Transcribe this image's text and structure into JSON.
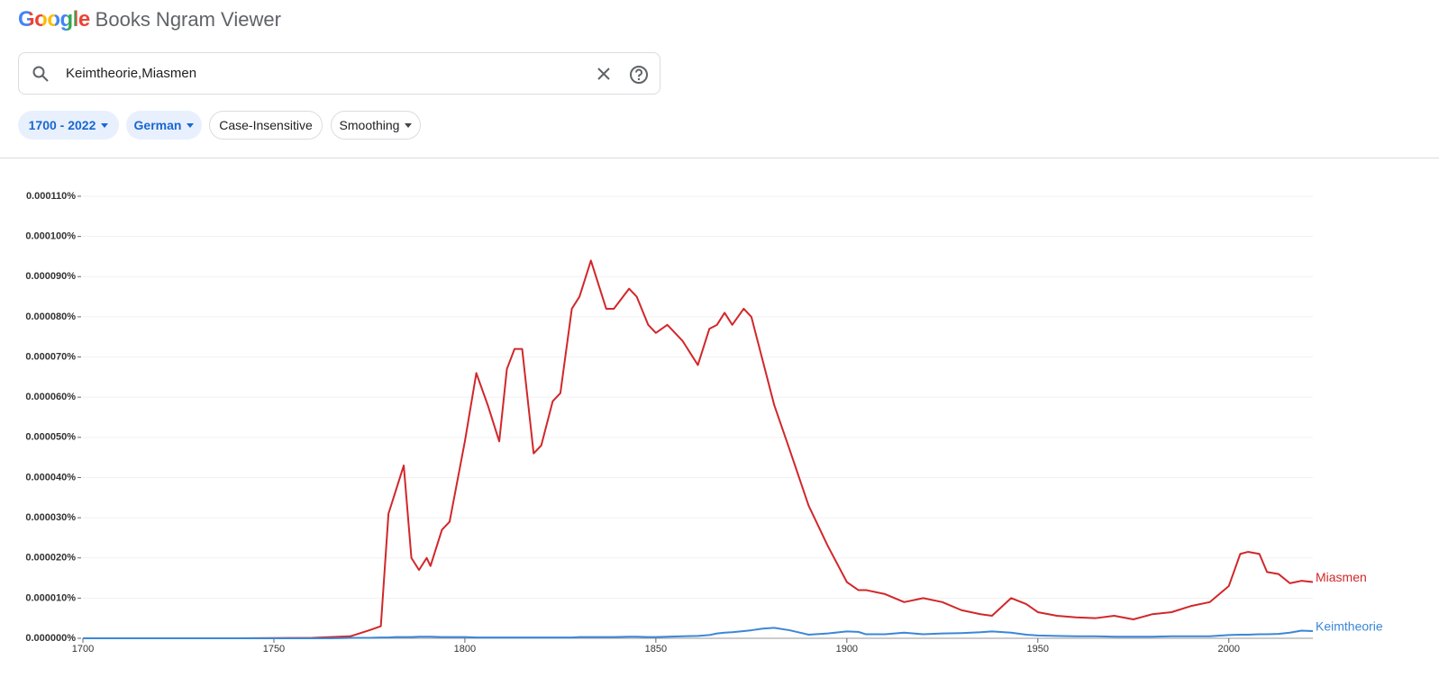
{
  "header": {
    "logo": "Google",
    "title": "Books Ngram Viewer"
  },
  "search": {
    "query": "Keimtheorie,Miasmen"
  },
  "chips": [
    "1700 - 2022",
    "German",
    "Case-Insensitive",
    "Smoothing"
  ],
  "chart_data": {
    "type": "line",
    "x": [
      1700,
      1720,
      1740,
      1760,
      1765,
      1770,
      1775,
      1778,
      1780,
      1782,
      1784,
      1786,
      1788,
      1790,
      1791,
      1794,
      1796,
      1800,
      1803,
      1806,
      1809,
      1811,
      1813,
      1815,
      1818,
      1820,
      1823,
      1825,
      1828,
      1830,
      1833,
      1837,
      1839,
      1843,
      1845,
      1848,
      1850,
      1853,
      1857,
      1861,
      1864,
      1866,
      1868,
      1870,
      1873,
      1875,
      1878,
      1881,
      1885,
      1890,
      1895,
      1900,
      1903,
      1905,
      1910,
      1915,
      1920,
      1925,
      1930,
      1935,
      1938,
      1943,
      1947,
      1950,
      1955,
      1960,
      1965,
      1970,
      1975,
      1980,
      1985,
      1990,
      1995,
      2000,
      2003,
      2005,
      2008,
      2010,
      2013,
      2016,
      2019,
      2022
    ],
    "series": [
      {
        "name": "Miasmen",
        "color": "#d1272a",
        "values": [
          0,
          0,
          0,
          1e-07,
          3e-07,
          5e-07,
          2e-06,
          3e-06,
          3.1e-05,
          3.7e-05,
          4.3e-05,
          2e-05,
          1.7e-05,
          2e-05,
          1.8e-05,
          2.7e-05,
          2.9e-05,
          4.9e-05,
          6.6e-05,
          5.8e-05,
          4.9e-05,
          6.7e-05,
          7.2e-05,
          7.2e-05,
          4.6e-05,
          4.8e-05,
          5.9e-05,
          6.1e-05,
          8.2e-05,
          8.5e-05,
          9.4e-05,
          8.2e-05,
          8.2e-05,
          8.7e-05,
          8.5e-05,
          7.8e-05,
          7.6e-05,
          7.8e-05,
          7.4e-05,
          6.8e-05,
          7.7e-05,
          7.8e-05,
          8.1e-05,
          7.8e-05,
          8.2e-05,
          8e-05,
          6.9e-05,
          5.8e-05,
          4.7e-05,
          3.3e-05,
          2.3e-05,
          1.4e-05,
          1.2e-05,
          1.2e-05,
          1.1e-05,
          9e-06,
          1e-05,
          9e-06,
          7e-06,
          6e-06,
          5.6e-06,
          1e-05,
          8.5e-06,
          6.5e-06,
          5.6e-06,
          5.2e-06,
          5e-06,
          5.6e-06,
          4.7e-06,
          6e-06,
          6.5e-06,
          8e-06,
          9e-06,
          1.3e-05,
          2.1e-05,
          2.15e-05,
          2.1e-05,
          1.65e-05,
          1.6e-05,
          1.37e-05,
          1.43e-05,
          1.4e-05
        ]
      },
      {
        "name": "Keimtheorie",
        "color": "#3b87d6",
        "values": [
          0,
          0,
          0,
          0,
          0,
          1e-07,
          1e-07,
          2e-07,
          2e-07,
          3e-07,
          3e-07,
          3e-07,
          4e-07,
          4e-07,
          4e-07,
          3e-07,
          3e-07,
          3e-07,
          2e-07,
          2e-07,
          2e-07,
          2e-07,
          2e-07,
          2e-07,
          2e-07,
          2e-07,
          2e-07,
          2e-07,
          2e-07,
          3e-07,
          3e-07,
          3e-07,
          3e-07,
          4e-07,
          4e-07,
          3e-07,
          3e-07,
          4e-07,
          5e-07,
          6e-07,
          8e-07,
          1.2e-06,
          1.4e-06,
          1.5e-06,
          1.8e-06,
          2e-06,
          2.4e-06,
          2.6e-06,
          2e-06,
          9e-07,
          1.2e-06,
          1.7e-06,
          1.6e-06,
          1e-06,
          1e-06,
          1.4e-06,
          1e-06,
          1.2e-06,
          1.3e-06,
          1.5e-06,
          1.7e-06,
          1.4e-06,
          9e-07,
          7e-07,
          6e-07,
          5e-07,
          5e-07,
          4e-07,
          4e-07,
          4e-07,
          5e-07,
          5e-07,
          5e-07,
          8e-07,
          9e-07,
          9e-07,
          1e-06,
          1e-06,
          1.1e-06,
          1.4e-06,
          1.9e-06,
          1.8e-06
        ]
      }
    ],
    "xlim": [
      1700,
      2022
    ],
    "xticks": [
      1700,
      1750,
      1800,
      1850,
      1900,
      1950,
      2000
    ],
    "ylim": [
      0,
      0.00011
    ],
    "yticks": [
      {
        "value": 0,
        "label": "0.000000%"
      },
      {
        "value": 1e-05,
        "label": "0.000010%"
      },
      {
        "value": 2e-05,
        "label": "0.000020%"
      },
      {
        "value": 3e-05,
        "label": "0.000030%"
      },
      {
        "value": 4e-05,
        "label": "0.000040%"
      },
      {
        "value": 5e-05,
        "label": "0.000050%"
      },
      {
        "value": 6e-05,
        "label": "0.000060%"
      },
      {
        "value": 7e-05,
        "label": "0.000070%"
      },
      {
        "value": 8e-05,
        "label": "0.000080%"
      },
      {
        "value": 9e-05,
        "label": "0.000090%"
      },
      {
        "value": 0.0001,
        "label": "0.000100%"
      },
      {
        "value": 0.00011,
        "label": "0.000110%"
      }
    ],
    "grid": true
  }
}
